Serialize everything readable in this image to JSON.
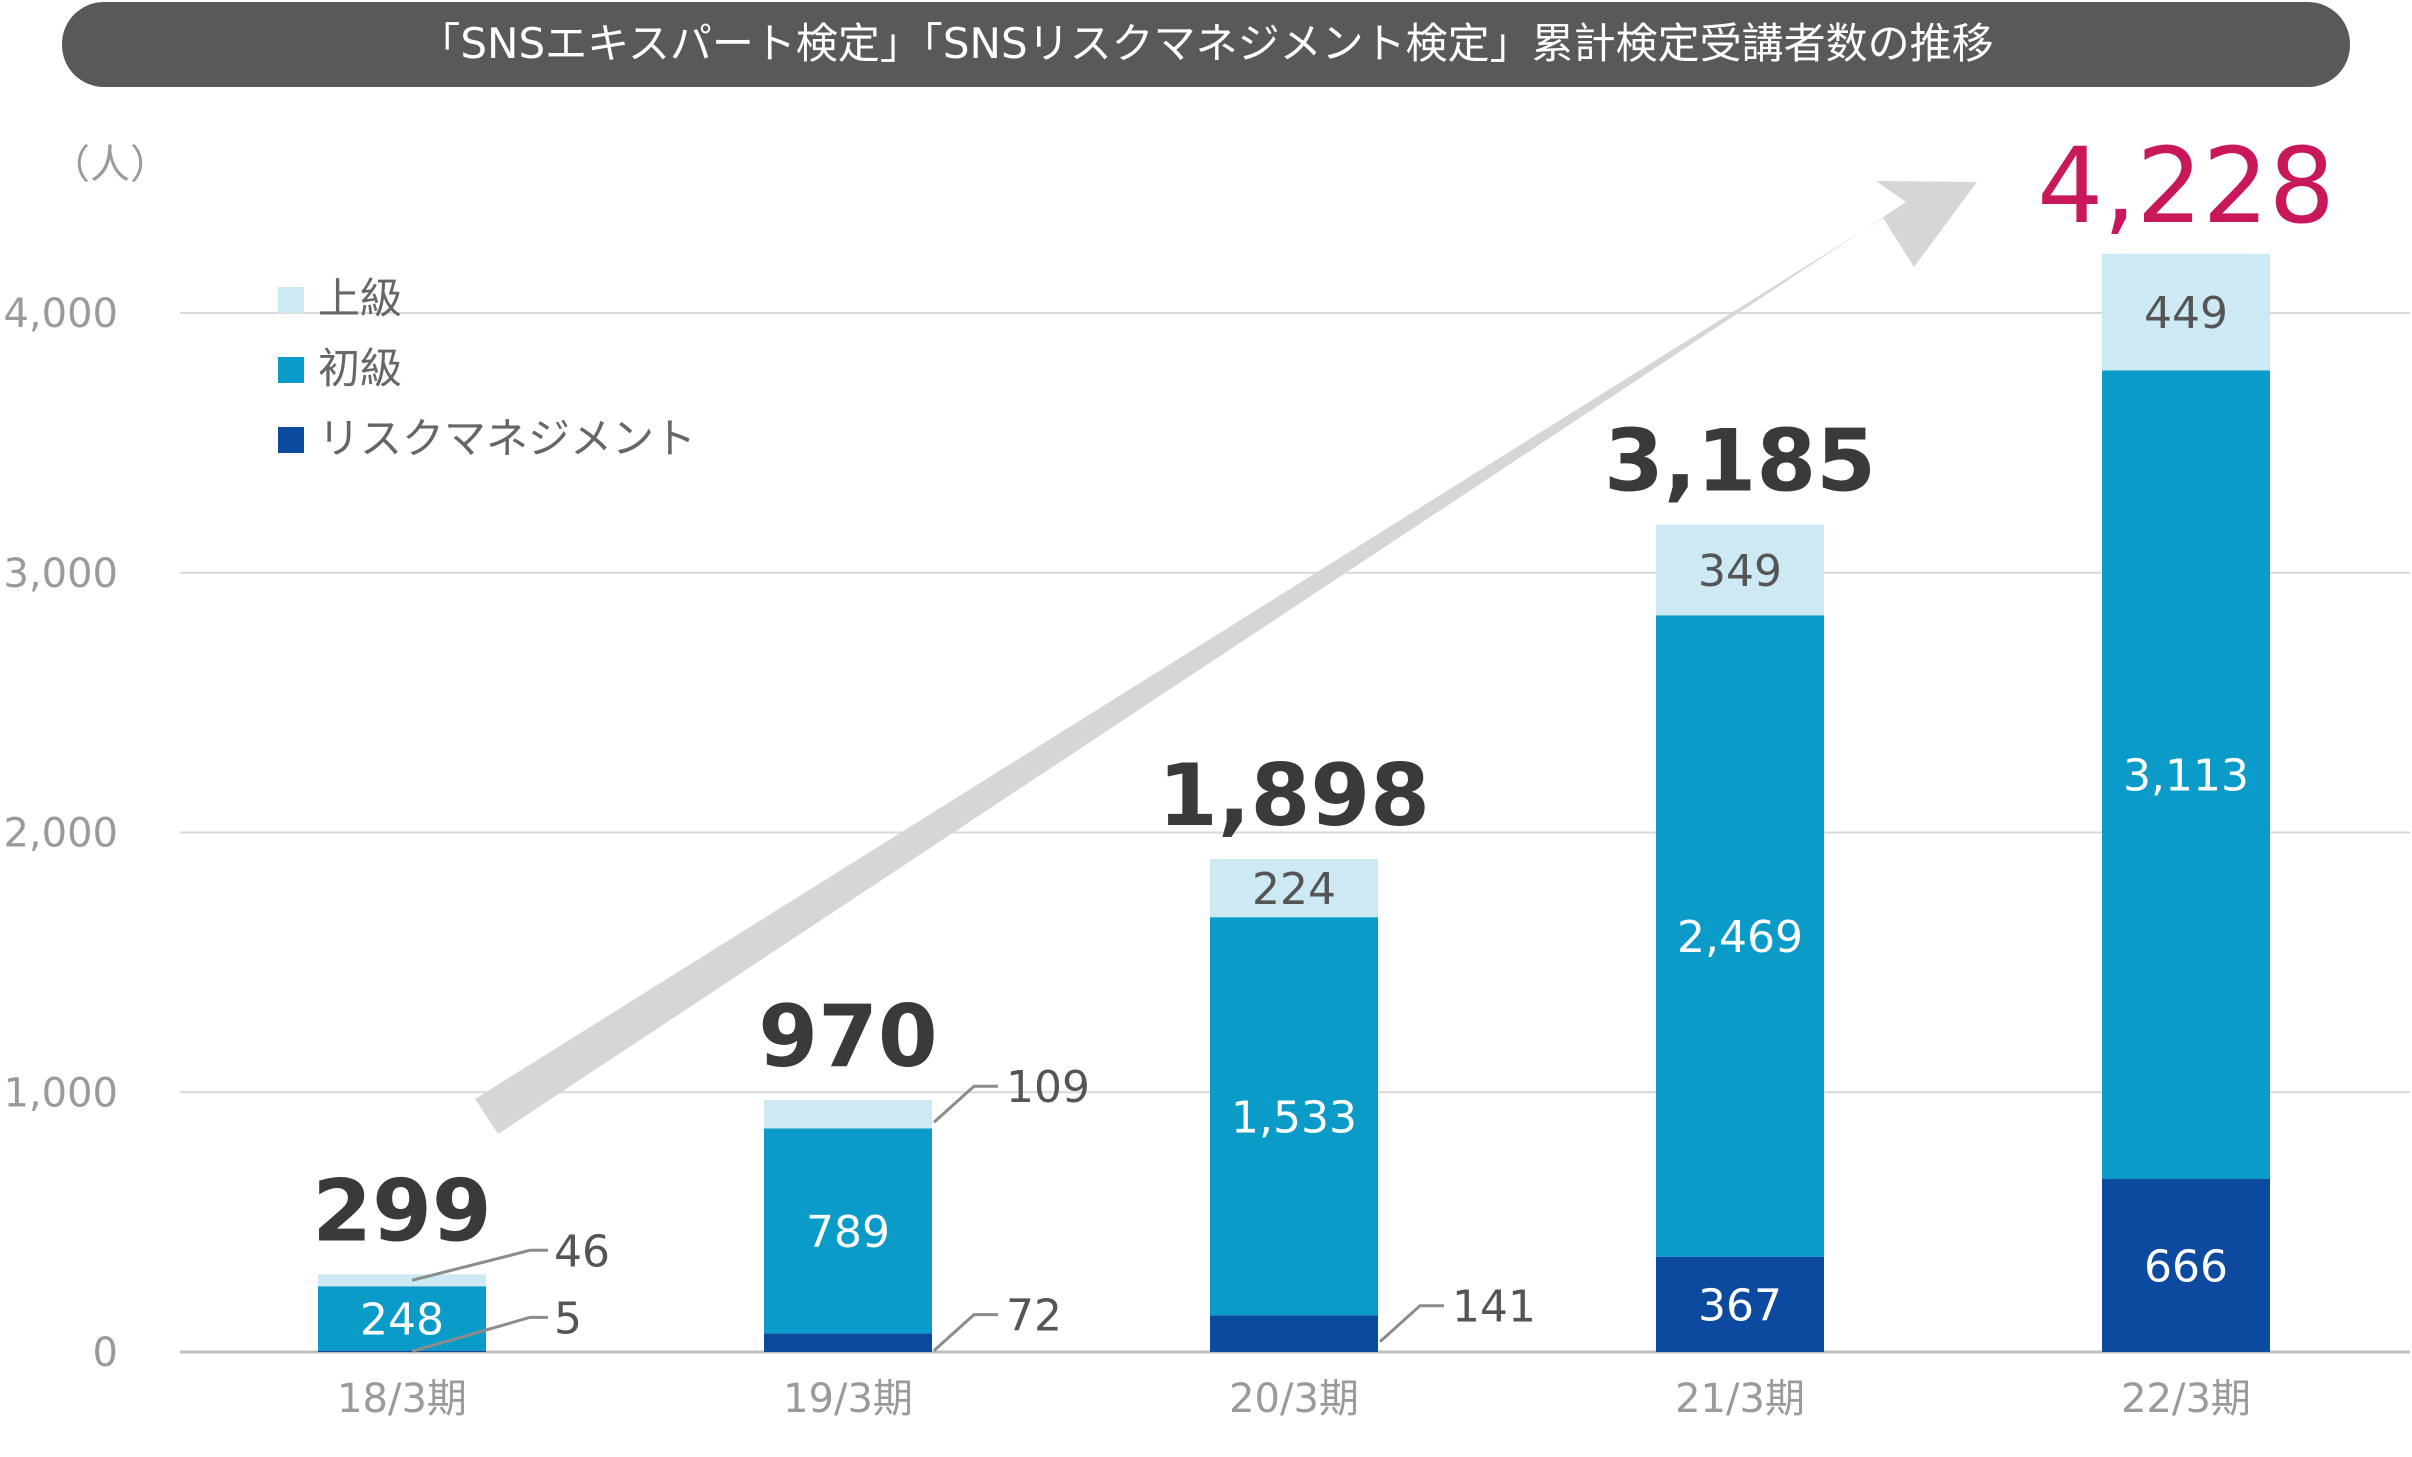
{
  "title": "「SNSエキスパート検定」「SNSリスクマネジメント検定」累計検定受講者数の推移",
  "colors": {
    "title_bg": "#595959",
    "advanced": "#cde9f3",
    "beginner": "#0a9bc8",
    "risk": "#0c4aa0",
    "grid": "#d9d9d9",
    "axis_text": "#9a9a9a",
    "total_text": "#3a3a3a",
    "highlight_total": "#c8175a",
    "arrow": "#d6d6d6"
  },
  "chart_data": {
    "type": "bar",
    "stacked": true,
    "ylabel": "（人）",
    "ylim": [
      0,
      4000
    ],
    "yticks": [
      "0",
      "1,000",
      "2,000",
      "3,000",
      "4,000"
    ],
    "ytick_values": [
      0,
      1000,
      2000,
      3000,
      4000
    ],
    "categories": [
      "18/3期",
      "19/3期",
      "20/3期",
      "21/3期",
      "22/3期"
    ],
    "series": [
      {
        "name": "リスクマネジメント",
        "values": [
          5,
          72,
          141,
          367,
          666
        ],
        "labels": [
          "5",
          "72",
          "141",
          "367",
          "666"
        ]
      },
      {
        "name": "初級",
        "values": [
          248,
          789,
          1533,
          2469,
          3113
        ],
        "labels": [
          "248",
          "789",
          "1,533",
          "2,469",
          "3,113"
        ]
      },
      {
        "name": "上級",
        "values": [
          46,
          109,
          224,
          349,
          449
        ],
        "labels": [
          "46",
          "109",
          "224",
          "349",
          "449"
        ]
      }
    ],
    "legend": {
      "placement": "top-left",
      "order": [
        "上級",
        "初級",
        "リスクマネジメント"
      ]
    },
    "totals": [
      "299",
      "970",
      "1,898",
      "3,185",
      "4,228"
    ],
    "total_values": [
      299,
      970,
      1898,
      3185,
      4228
    ],
    "highlight_index": 4,
    "grid": true
  }
}
